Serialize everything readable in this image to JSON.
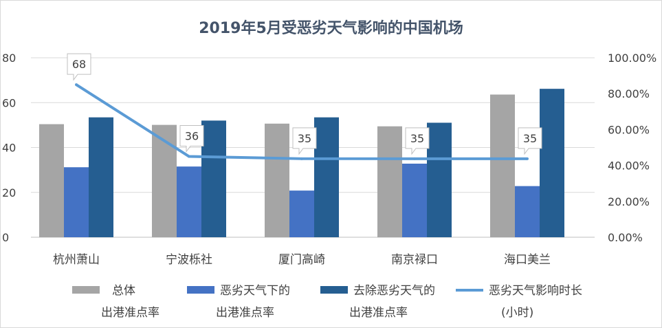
{
  "title": "2019年5月受恶劣天气影响的中国机场",
  "chart_data": {
    "type": "bar+line",
    "title": "2019年5月受恶劣天气影响的中国机场",
    "categories": [
      "杭州萧山",
      "宁波栎社",
      "厦门高崎",
      "南京禄口",
      "海口美兰"
    ],
    "y_left": {
      "ticks": [
        "0",
        "20",
        "40",
        "60",
        "80"
      ],
      "ylim": [
        0,
        80
      ]
    },
    "y_right": {
      "ticks": [
        "0.00%",
        "20.00%",
        "40.00%",
        "60.00%",
        "80.00%",
        "100.00%"
      ],
      "ylim": [
        0,
        1
      ]
    },
    "series": [
      {
        "name_line1": "总体",
        "name_line2": "出港准点率",
        "axis": "right",
        "kind": "bar",
        "color": "#a5a5a5",
        "values": [
          0.63,
          0.626,
          0.633,
          0.618,
          0.795
        ]
      },
      {
        "name_line1": "恶劣天气下的",
        "name_line2": "出港准点率",
        "axis": "right",
        "kind": "bar",
        "color": "#4472c4",
        "values": [
          0.39,
          0.394,
          0.26,
          0.41,
          0.285
        ]
      },
      {
        "name_line1": "去除恶劣天气的",
        "name_line2": "出港准点率",
        "axis": "right",
        "kind": "bar",
        "color": "#255e91",
        "values": [
          0.668,
          0.65,
          0.668,
          0.638,
          0.827
        ]
      },
      {
        "name_line1": "恶劣天气影响时长",
        "name_line2": "(小时)",
        "axis": "left",
        "kind": "line",
        "color": "#5b9bd5",
        "values": [
          68,
          36,
          35,
          35,
          35
        ],
        "labels": [
          "68",
          "36",
          "35",
          "35",
          "35"
        ]
      }
    ],
    "grid": true,
    "legend_position": "bottom"
  }
}
